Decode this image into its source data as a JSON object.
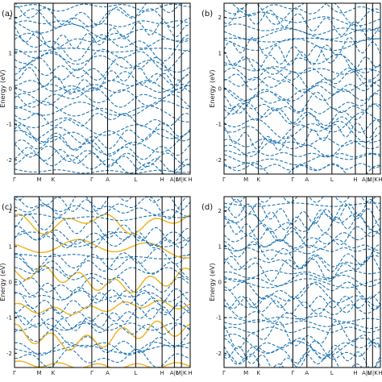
{
  "chart_data": [
    {
      "type": "line",
      "panel_label": "(a)",
      "ylabel": "Energy (eV)",
      "ylim": [
        -2.4,
        2.4
      ],
      "y_ticks": [
        -2,
        -1,
        0,
        1,
        2
      ],
      "x_ticks": [
        "Γ",
        "M",
        "K",
        "Γ",
        "A",
        "L",
        "H",
        "A|L",
        "M|K",
        "H"
      ],
      "series_colors": [
        "#1f77b4",
        "#e8b923"
      ],
      "grid": false
    },
    {
      "type": "line",
      "panel_label": "(b)",
      "ylabel": "Energy (eV)",
      "ylim": [
        -2.4,
        2.4
      ],
      "y_ticks": [
        -2,
        -1,
        0,
        1,
        2
      ],
      "x_ticks": [
        "Γ",
        "M",
        "K",
        "Γ",
        "A",
        "L",
        "H",
        "A|L",
        "M|K",
        "H"
      ],
      "series_colors": [
        "#1f77b4",
        "#7ab09a"
      ],
      "grid": false
    },
    {
      "type": "line",
      "panel_label": "(c)",
      "ylabel": "Energy (eV)",
      "ylim": [
        -2.4,
        2.4
      ],
      "y_ticks": [
        -2,
        -1,
        0,
        1,
        2
      ],
      "x_ticks": [
        "Γ",
        "M",
        "K",
        "Γ",
        "A",
        "L",
        "H",
        "A|L",
        "M|K",
        "H"
      ],
      "series_colors": [
        "#1f77b4",
        "#f0b429"
      ],
      "grid": false
    },
    {
      "type": "line",
      "panel_label": "(d)",
      "ylabel": "Energy (eV)",
      "ylim": [
        -2.4,
        2.4
      ],
      "y_ticks": [
        -2,
        -1,
        0,
        1,
        2
      ],
      "x_ticks": [
        "Γ",
        "M",
        "K",
        "Γ",
        "A",
        "L",
        "H",
        "A|L",
        "M|K",
        "H"
      ],
      "series_colors": [
        "#1f77b4",
        "#7ab09a"
      ],
      "grid": false
    }
  ]
}
